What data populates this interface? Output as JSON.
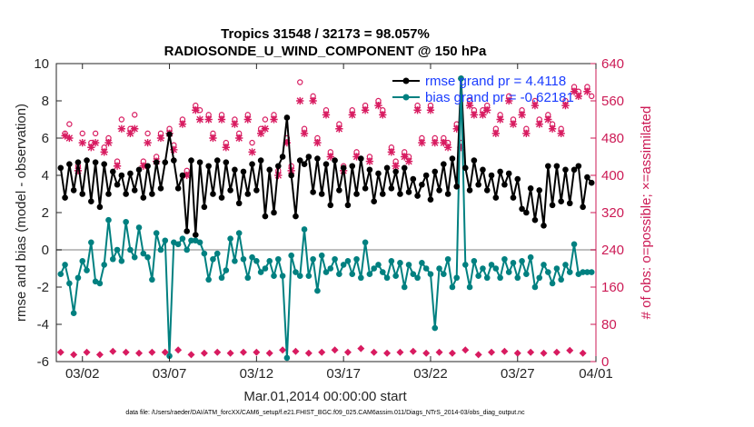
{
  "chart_data": {
    "type": "line",
    "title": "Tropics 31548 / 32173 = 98.057%",
    "subtitle": "RADIOSONDE_U_WIND_COMPONENT @ 150 hPa",
    "xlabel": "Mar.01,2014 00:00:00 start",
    "ylabel": "rmse and bias (model - observation)",
    "y2label": "# of obs: o=possible; ×=assimilated",
    "footnote": "data file: /Users/raeder/DAI/ATM_forcXX/CAM6_setup/f.e21.FHIST_BGC.f09_025.CAM6assim.011/Diags_NTrS_2014-03/obs_diag_output.nc",
    "xlim": [
      0.5,
      31.5
    ],
    "ylim": [
      -6,
      10
    ],
    "y2lim": [
      0,
      640
    ],
    "xtick_values": [
      2,
      7,
      12,
      17,
      22,
      27,
      32
    ],
    "xtick_labels": [
      "03/02",
      "03/07",
      "03/12",
      "03/17",
      "03/22",
      "03/27",
      "04/01"
    ],
    "ytick_labels": [
      "-6",
      "-4",
      "-2",
      "0",
      "2",
      "4",
      "6",
      "8",
      "10"
    ],
    "y2tick_labels": [
      "0",
      "80",
      "160",
      "240",
      "320",
      "400",
      "480",
      "560",
      "640"
    ],
    "colors": {
      "rmse": "#000000",
      "bias": "#008080",
      "obs": "#d81b60",
      "zero": "#bfbfbf",
      "legend_text": "#1a3cff"
    },
    "legend": {
      "location": "top-right",
      "entries": [
        "rmse grand pr = 4.4118",
        "bias grand pr = -0.62181"
      ]
    },
    "series": [
      {
        "name": "rmse",
        "x": [
          0.75,
          1,
          1.25,
          1.5,
          1.75,
          2,
          2.25,
          2.5,
          2.75,
          3,
          3.25,
          3.5,
          3.75,
          4,
          4.25,
          4.5,
          4.75,
          5,
          5.25,
          5.5,
          5.75,
          6,
          6.25,
          6.5,
          6.75,
          7,
          7.25,
          7.5,
          7.75,
          8,
          8.25,
          8.5,
          8.75,
          9,
          9.25,
          9.5,
          9.75,
          10,
          10.25,
          10.5,
          10.75,
          11,
          11.25,
          11.5,
          11.75,
          12,
          12.25,
          12.5,
          12.75,
          13,
          13.25,
          13.5,
          13.75,
          14,
          14.25,
          14.5,
          14.75,
          15,
          15.25,
          15.5,
          15.75,
          16,
          16.25,
          16.5,
          16.75,
          17,
          17.25,
          17.5,
          17.75,
          18,
          18.25,
          18.5,
          18.75,
          19,
          19.25,
          19.5,
          19.75,
          20,
          20.25,
          20.5,
          20.75,
          21,
          21.25,
          21.5,
          21.75,
          22,
          22.25,
          22.5,
          22.75,
          23,
          23.25,
          23.5,
          23.75,
          24,
          24.25,
          24.5,
          24.75,
          25,
          25.25,
          25.5,
          25.75,
          26,
          26.25,
          26.5,
          26.75,
          27,
          27.25,
          27.5,
          27.75,
          28,
          28.25,
          28.5,
          28.75,
          29,
          29.25,
          29.5,
          29.75,
          30,
          30.25,
          30.5,
          30.75,
          31,
          31.25
        ],
        "values": [
          4.4,
          2.8,
          4.6,
          3.2,
          4.7,
          3.0,
          4.8,
          2.6,
          4.7,
          2.3,
          4.6,
          3.0,
          4.2,
          3.5,
          4.0,
          3.0,
          4.1,
          3.2,
          4.3,
          2.8,
          4.5,
          3.0,
          4.7,
          3.3,
          4.7,
          6.2,
          4.8,
          3.3,
          4.0,
          1.0,
          4.8,
          0.8,
          4.7,
          2.3,
          4.5,
          3.0,
          4.8,
          2.8,
          4.7,
          3.2,
          4.3,
          2.5,
          4.2,
          3.0,
          4.6,
          3.2,
          4.8,
          1.8,
          4.3,
          2.0,
          4.5,
          5.0,
          7.1,
          4.0,
          1.8,
          4.8,
          4.6,
          5.0,
          3.1,
          4.9,
          3.0,
          4.6,
          2.4,
          4.8,
          3.2,
          4.4,
          2.4,
          4.5,
          3.0,
          4.9,
          3.3,
          4.3,
          2.6,
          4.1,
          3.0,
          4.4,
          3.3,
          4.2,
          3.0,
          4.4,
          3.1,
          3.8,
          2.9,
          3.5,
          4.0,
          2.7,
          4.2,
          3.2,
          4.6,
          3.0,
          4.9,
          3.4,
          9.2,
          4.4,
          3.2,
          4.8,
          3.5,
          4.3,
          3.2,
          4.0,
          2.8,
          4.2,
          3.5,
          4.1,
          2.8,
          3.8,
          2.2,
          2.0,
          3.3,
          1.6,
          3.2,
          1.3,
          4.5,
          2.4,
          4.5,
          2.6,
          4.3,
          2.5,
          4.3,
          4.5,
          2.3,
          3.9,
          3.6
        ]
      },
      {
        "name": "bias",
        "x": [
          0.75,
          1,
          1.25,
          1.5,
          1.75,
          2,
          2.25,
          2.5,
          2.75,
          3,
          3.25,
          3.5,
          3.75,
          4,
          4.25,
          4.5,
          4.75,
          5,
          5.25,
          5.5,
          5.75,
          6,
          6.25,
          6.5,
          6.75,
          7,
          7.25,
          7.5,
          7.75,
          8,
          8.25,
          8.5,
          8.75,
          9,
          9.25,
          9.5,
          9.75,
          10,
          10.25,
          10.5,
          10.75,
          11,
          11.25,
          11.5,
          11.75,
          12,
          12.25,
          12.5,
          12.75,
          13,
          13.25,
          13.5,
          13.75,
          14,
          14.25,
          14.5,
          14.75,
          15,
          15.25,
          15.5,
          15.75,
          16,
          16.25,
          16.5,
          16.75,
          17,
          17.25,
          17.5,
          17.75,
          18,
          18.25,
          18.5,
          18.75,
          19,
          19.25,
          19.5,
          19.75,
          20,
          20.25,
          20.5,
          20.75,
          21,
          21.25,
          21.5,
          21.75,
          22,
          22.25,
          22.5,
          22.75,
          23,
          23.25,
          23.5,
          23.75,
          24,
          24.25,
          24.5,
          24.75,
          25,
          25.25,
          25.5,
          25.75,
          26,
          26.25,
          26.5,
          26.75,
          27,
          27.25,
          27.5,
          27.75,
          28,
          28.25,
          28.5,
          28.75,
          29,
          29.25,
          29.5,
          29.75,
          30,
          30.25,
          30.5,
          30.75,
          31,
          31.25
        ],
        "values": [
          -1.3,
          -0.8,
          -1.8,
          -3.4,
          -1.5,
          -0.6,
          -1.1,
          0.4,
          -1.7,
          -1.8,
          -0.8,
          1.6,
          -0.5,
          0.0,
          -0.6,
          1.5,
          0.0,
          -0.4,
          1.2,
          -0.2,
          -0.4,
          -1.6,
          0.9,
          0.0,
          0.5,
          -5.7,
          0.4,
          0.3,
          0.6,
          0.0,
          0.5,
          0.5,
          0.4,
          -0.2,
          -1.6,
          -0.5,
          -0.2,
          -1.5,
          -1.1,
          0.6,
          -0.6,
          0.9,
          -0.5,
          -1.5,
          -0.4,
          -0.6,
          -1.2,
          -1.0,
          -0.6,
          -1.4,
          -0.5,
          -1.4,
          -5.8,
          -0.3,
          -1.2,
          -1.4,
          1.1,
          -1.4,
          -0.5,
          -2.2,
          -0.3,
          -1.2,
          -1.0,
          -0.5,
          -1.3,
          -0.8,
          -0.6,
          -1.3,
          -0.5,
          -1.5,
          0.4,
          -1.3,
          -1.0,
          -0.8,
          -1.2,
          -1.5,
          -0.6,
          -1.4,
          -0.7,
          -2.0,
          -0.8,
          -1.3,
          -1.5,
          -0.7,
          -1.0,
          -1.3,
          -4.2,
          -1.0,
          -1.3,
          -0.5,
          -2.0,
          -1.5,
          9.2,
          -0.8,
          -2.0,
          -0.6,
          -1.4,
          -1.0,
          -1.5,
          -0.8,
          -1.0,
          -1.5,
          -0.5,
          -1.2,
          -0.7,
          -1.5,
          -0.6,
          -1.3,
          -0.4,
          -2.0,
          -1.5,
          -0.8,
          -1.2,
          -1.8,
          -1.0,
          -1.6,
          -0.8,
          -1.2,
          0.3,
          -1.3,
          -1.2,
          -1.2,
          -1.2
        ]
      },
      {
        "name": "obs possible",
        "x": [
          0.75,
          1,
          1.25,
          1.5,
          1.75,
          2,
          2.25,
          2.5,
          2.75,
          3,
          3.25,
          3.5,
          3.75,
          4,
          4.25,
          4.5,
          4.75,
          5,
          5.25,
          5.5,
          5.75,
          6,
          6.25,
          6.5,
          6.75,
          7,
          7.25,
          7.5,
          7.75,
          8,
          8.25,
          8.5,
          8.75,
          9,
          9.25,
          9.5,
          9.75,
          10,
          10.25,
          10.5,
          10.75,
          11,
          11.25,
          11.5,
          11.75,
          12,
          12.25,
          12.5,
          12.75,
          13,
          13.25,
          13.5,
          13.75,
          14,
          14.25,
          14.5,
          14.75,
          15,
          15.25,
          15.5,
          15.75,
          16,
          16.25,
          16.5,
          16.75,
          17,
          17.25,
          17.5,
          17.75,
          18,
          18.25,
          18.5,
          18.75,
          19,
          19.25,
          19.5,
          19.75,
          20,
          20.25,
          20.5,
          20.75,
          21,
          21.25,
          21.5,
          21.75,
          22,
          22.25,
          22.5,
          22.75,
          23,
          23.25,
          23.5,
          23.75,
          24,
          24.25,
          24.5,
          24.75,
          25,
          25.25,
          25.5,
          25.75,
          26,
          26.25,
          26.5,
          26.75,
          27,
          27.25,
          27.5,
          27.75,
          28,
          28.25,
          28.5,
          28.75,
          29,
          29.25,
          29.5,
          29.75,
          30,
          30.25,
          30.5,
          30.75,
          31,
          31.25
        ],
        "values": [
          20,
          490,
          510,
          15,
          420,
          490,
          20,
          470,
          490,
          15,
          460,
          480,
          22,
          430,
          520,
          20,
          500,
          530,
          18,
          430,
          490,
          20,
          440,
          490,
          20,
          500,
          465,
          25,
          520,
          410,
          15,
          550,
          540,
          18,
          530,
          490,
          20,
          530,
          470,
          18,
          520,
          490,
          20,
          530,
          470,
          20,
          500,
          520,
          18,
          530,
          410,
          25,
          480,
          420,
          22,
          600,
          500,
          18,
          570,
          480,
          20,
          540,
          450,
          25,
          510,
          420,
          20,
          540,
          450,
          28,
          550,
          440,
          20,
          560,
          540,
          18,
          460,
          430,
          20,
          450,
          440,
          22,
          550,
          480,
          18,
          550,
          480,
          20,
          480,
          470,
          18,
          510,
          470,
          25,
          560,
          540,
          15,
          540,
          550,
          20,
          500,
          530,
          22,
          570,
          520,
          18,
          540,
          500,
          20,
          560,
          520,
          18,
          530,
          510,
          20,
          500,
          560,
          24,
          590,
          580,
          18,
          590,
          570
        ]
      },
      {
        "name": "obs assimilated",
        "x": [
          0.75,
          1,
          1.25,
          1.5,
          1.75,
          2,
          2.25,
          2.5,
          2.75,
          3,
          3.25,
          3.5,
          3.75,
          4,
          4.25,
          4.5,
          4.75,
          5,
          5.25,
          5.5,
          5.75,
          6,
          6.25,
          6.5,
          6.75,
          7,
          7.25,
          7.5,
          7.75,
          8,
          8.25,
          8.5,
          8.75,
          9,
          9.25,
          9.5,
          9.75,
          10,
          10.25,
          10.5,
          10.75,
          11,
          11.25,
          11.5,
          11.75,
          12,
          12.25,
          12.5,
          12.75,
          13,
          13.25,
          13.5,
          13.75,
          14,
          14.25,
          14.5,
          14.75,
          15,
          15.25,
          15.5,
          15.75,
          16,
          16.25,
          16.5,
          16.75,
          17,
          17.25,
          17.5,
          17.75,
          18,
          18.25,
          18.5,
          18.75,
          19,
          19.25,
          19.5,
          19.75,
          20,
          20.25,
          20.5,
          20.75,
          21,
          21.25,
          21.5,
          21.75,
          22,
          22.25,
          22.5,
          22.75,
          23,
          23.25,
          23.5,
          23.75,
          24,
          24.25,
          24.5,
          24.75,
          25,
          25.25,
          25.5,
          25.75,
          26,
          26.25,
          26.5,
          26.75,
          27,
          27.25,
          27.5,
          27.75,
          28,
          28.25,
          28.5,
          28.75,
          29,
          29.25,
          29.5,
          29.75,
          30,
          30.25,
          30.5,
          30.75,
          31,
          31.25
        ],
        "values": [
          20,
          485,
          480,
          15,
          410,
          470,
          20,
          460,
          470,
          15,
          450,
          470,
          22,
          420,
          500,
          20,
          490,
          500,
          18,
          420,
          470,
          20,
          430,
          480,
          20,
          490,
          455,
          25,
          510,
          400,
          15,
          540,
          520,
          18,
          520,
          480,
          20,
          520,
          460,
          18,
          510,
          480,
          20,
          520,
          450,
          20,
          490,
          500,
          18,
          520,
          400,
          25,
          470,
          410,
          22,
          560,
          490,
          18,
          560,
          470,
          20,
          530,
          440,
          25,
          500,
          410,
          20,
          530,
          440,
          28,
          540,
          430,
          20,
          550,
          530,
          18,
          450,
          420,
          20,
          440,
          430,
          22,
          540,
          470,
          18,
          540,
          470,
          20,
          470,
          460,
          18,
          500,
          460,
          25,
          550,
          530,
          15,
          530,
          540,
          20,
          490,
          520,
          22,
          560,
          510,
          18,
          530,
          490,
          20,
          550,
          510,
          18,
          520,
          500,
          20,
          490,
          550,
          24,
          580,
          570,
          18,
          580,
          10
        ]
      }
    ]
  }
}
